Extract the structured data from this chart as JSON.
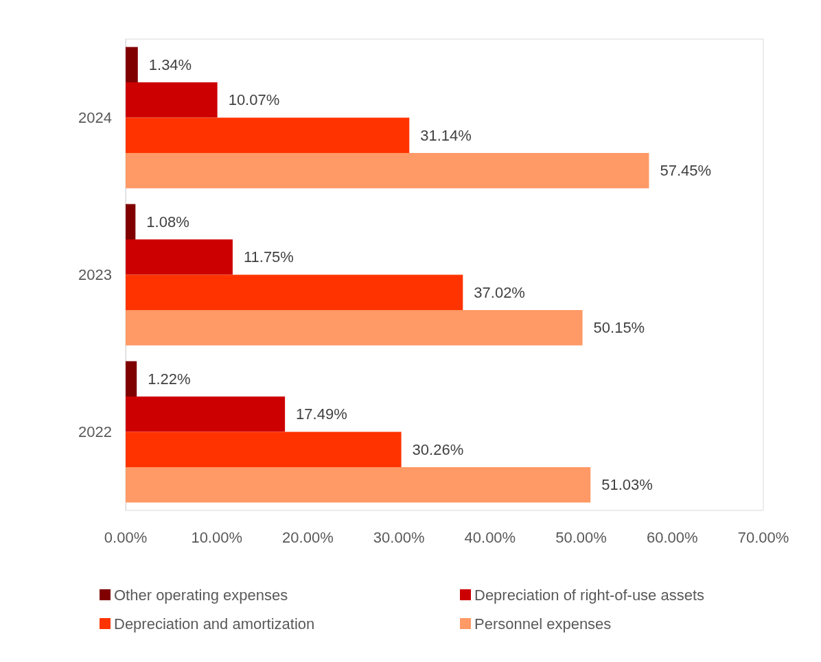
{
  "chart_data": {
    "type": "bar",
    "orientation": "horizontal",
    "categories": [
      "2024",
      "2023",
      "2022"
    ],
    "series": [
      {
        "name": "Other operating expenses",
        "color": "#800000",
        "values": [
          1.34,
          1.08,
          1.22
        ],
        "value_labels": [
          "1.34%",
          "1.08%",
          "1.22%"
        ]
      },
      {
        "name": "Depreciation of right-of-use assets",
        "color": "#cc0000",
        "values": [
          10.07,
          11.75,
          17.49
        ],
        "value_labels": [
          "10.07%",
          "11.75%",
          "17.49%"
        ]
      },
      {
        "name": "Depreciation and amortization",
        "color": "#ff3300",
        "values": [
          31.14,
          37.02,
          30.26
        ],
        "value_labels": [
          "31.14%",
          "37.02%",
          "30.26%"
        ]
      },
      {
        "name": "Personnel expenses",
        "color": "#ff9966",
        "values": [
          57.45,
          50.15,
          51.03
        ],
        "value_labels": [
          "57.45%",
          "50.15%",
          "51.03%"
        ]
      }
    ],
    "xlim": [
      0,
      70
    ],
    "xticks": [
      {
        "value": 0,
        "label": "0.00%"
      },
      {
        "value": 10,
        "label": "10.00%"
      },
      {
        "value": 20,
        "label": "20.00%"
      },
      {
        "value": 30,
        "label": "30.00%"
      },
      {
        "value": 40,
        "label": "40.00%"
      },
      {
        "value": 50,
        "label": "50.00%"
      },
      {
        "value": 60,
        "label": "60.00%"
      },
      {
        "value": 70,
        "label": "70.00%"
      }
    ],
    "grid": false,
    "legend": "bottom"
  }
}
